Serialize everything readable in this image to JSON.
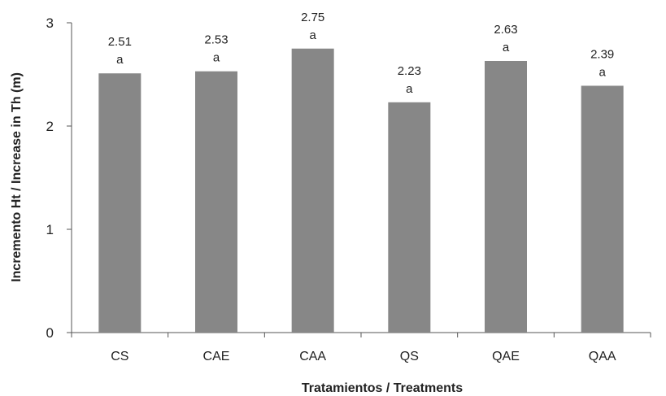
{
  "chart_data": {
    "type": "bar",
    "xlabel": "Tratamientos / Treatments",
    "ylabel": "Incremento Ht / Increase in Th (m)",
    "ylim": [
      0,
      3
    ],
    "yticks": [
      0,
      1,
      2,
      3
    ],
    "categories": [
      "CS",
      "CAE",
      "CAA",
      "QS",
      "QAE",
      "QAA"
    ],
    "values": [
      2.51,
      2.53,
      2.75,
      2.23,
      2.63,
      2.39
    ],
    "value_labels": [
      "2.51",
      "2.53",
      "2.75",
      "2.23",
      "2.63",
      "2.39"
    ],
    "significance": [
      "a",
      "a",
      "a",
      "a",
      "a",
      "a"
    ],
    "bar_color": "#878787",
    "grid": false
  }
}
